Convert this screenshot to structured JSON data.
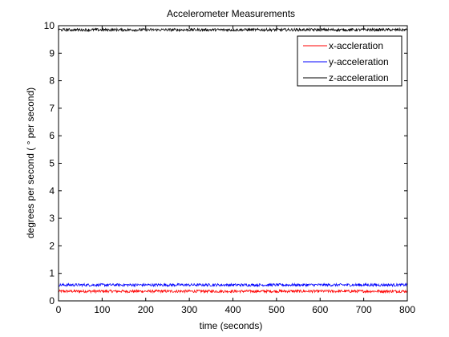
{
  "chart_data": {
    "type": "line",
    "title": "Accelerometer Measurements",
    "xlabel": "time (seconds)",
    "ylabel": "degrees per second ( ° per second)",
    "xlim": [
      0,
      800
    ],
    "ylim": [
      0,
      10
    ],
    "x_ticks": [
      "0",
      "100",
      "200",
      "300",
      "400",
      "500",
      "600",
      "700",
      "800"
    ],
    "y_ticks": [
      "0",
      "1",
      "2",
      "3",
      "4",
      "5",
      "6",
      "7",
      "8",
      "9",
      "10"
    ],
    "grid": false,
    "legend_position": "top-right",
    "series": [
      {
        "name": "x-accleration",
        "color": "#ff0000",
        "mean": 0.35,
        "noise_amplitude": 0.05
      },
      {
        "name": "y-acceleration",
        "color": "#0000ff",
        "mean": 0.58,
        "noise_amplitude": 0.05
      },
      {
        "name": "z-acceleration",
        "color": "#000000",
        "mean": 9.85,
        "noise_amplitude": 0.05
      }
    ]
  }
}
